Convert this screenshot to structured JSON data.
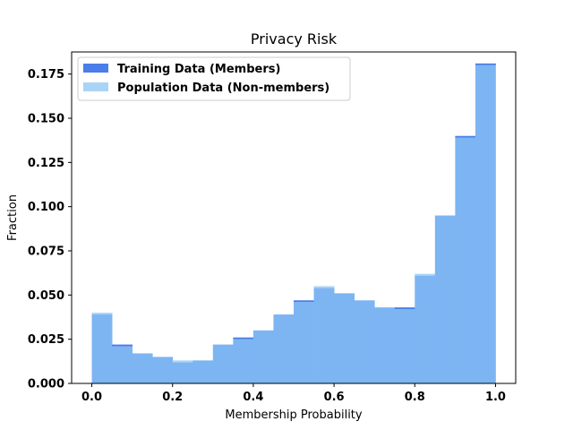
{
  "chart_data": {
    "type": "bar",
    "subtype": "overlaid-histogram",
    "title": "Privacy Risk",
    "xlabel": "Membership Probability",
    "ylabel": "Fraction",
    "xlim": [
      -0.05,
      1.05
    ],
    "ylim": [
      0,
      0.1875
    ],
    "xticks": [
      "0.0",
      "0.2",
      "0.4",
      "0.6",
      "0.8",
      "1.0"
    ],
    "yticks": [
      "0.000",
      "0.025",
      "0.050",
      "0.075",
      "0.100",
      "0.125",
      "0.150",
      "0.175"
    ],
    "bin_edges": [
      0.0,
      0.05,
      0.1,
      0.15,
      0.2,
      0.25,
      0.3,
      0.35,
      0.4,
      0.45,
      0.5,
      0.55,
      0.6,
      0.65,
      0.7,
      0.75,
      0.8,
      0.85,
      0.9,
      0.95,
      1.0
    ],
    "legend": {
      "position": "top-left"
    },
    "series": [
      {
        "name": "Training Data (Members)",
        "color": "#4a7ee8",
        "values": [
          0.039,
          0.022,
          0.017,
          0.015,
          0.012,
          0.013,
          0.022,
          0.026,
          0.03,
          0.039,
          0.047,
          0.054,
          0.051,
          0.047,
          0.043,
          0.043,
          0.061,
          0.095,
          0.14,
          0.181
        ]
      },
      {
        "name": "Population Data (Non-members)",
        "color": "#aad4f5",
        "values": [
          0.04,
          0.021,
          0.017,
          0.015,
          0.013,
          0.013,
          0.022,
          0.025,
          0.03,
          0.039,
          0.046,
          0.055,
          0.051,
          0.047,
          0.043,
          0.042,
          0.062,
          0.095,
          0.139,
          0.18
        ]
      }
    ],
    "overlap_color": "#7db5f3"
  }
}
